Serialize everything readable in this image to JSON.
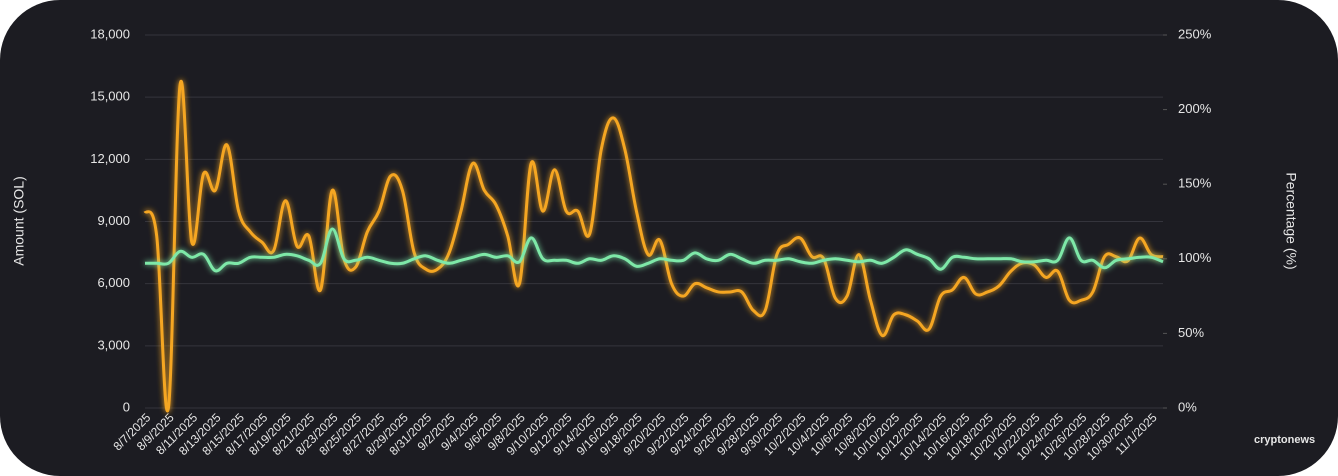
{
  "chart_data": {
    "type": "line",
    "y_label": "Amount (SOL)",
    "y2_label": "Percentage (%)",
    "watermark": "cryptonews",
    "categories": [
      "8/7/2025",
      null,
      "8/9/2025",
      null,
      "8/11/2025",
      null,
      "8/13/2025",
      null,
      "8/15/2025",
      null,
      "8/17/2025",
      null,
      "8/19/2025",
      null,
      "8/21/2025",
      null,
      "8/23/2025",
      null,
      "8/25/2025",
      null,
      "8/27/2025",
      null,
      "8/29/2025",
      null,
      "8/31/2025",
      null,
      "9/2/2025",
      null,
      "9/4/2025",
      null,
      "9/6/2025",
      null,
      "9/8/2025",
      null,
      "9/10/2025",
      null,
      "9/12/2025",
      null,
      "9/14/2025",
      null,
      "9/16/2025",
      null,
      "9/18/2025",
      null,
      "9/20/2025",
      null,
      "9/22/2025",
      null,
      "9/24/2025",
      null,
      "9/26/2025",
      null,
      "9/28/2025",
      null,
      "9/30/2025",
      null,
      "10/2/2025",
      null,
      "10/4/2025",
      null,
      "10/6/2025",
      null,
      "10/8/2025",
      null,
      "10/10/2025",
      null,
      "10/12/2025",
      null,
      "10/14/2025",
      null,
      "10/16/2025",
      null,
      "10/18/2025",
      null,
      "10/20/2025",
      null,
      "10/22/2025",
      null,
      "10/24/2025",
      null,
      "10/26/2025",
      null,
      "10/28/2025",
      null,
      "10/30/2025",
      null,
      "11/1/2025",
      null
    ],
    "series": [
      {
        "color": "#f5a623",
        "values": [
          9500,
          8300,
          0,
          15600,
          8000,
          11300,
          10500,
          12700,
          9500,
          8500,
          8000,
          7600,
          10000,
          7800,
          8300,
          5700,
          10500,
          7200,
          6800,
          8500,
          9500,
          11200,
          10500,
          7500,
          6700,
          6700,
          7500,
          9500,
          11800,
          10500,
          9800,
          8300,
          6000,
          11800,
          9500,
          11500,
          9500,
          9500,
          8400,
          12500,
          14000,
          12500,
          9500,
          7400,
          8100,
          6000,
          5400,
          6000,
          5800,
          5600,
          5600,
          5600,
          4700,
          4700,
          7400,
          7900,
          8200,
          7300,
          7200,
          5300,
          5400,
          7400,
          5200,
          3500,
          4500,
          4500,
          4200,
          3800,
          5400,
          5700,
          6300,
          5500,
          5600,
          5900,
          6600,
          7000,
          6900,
          6300,
          6600,
          5200,
          5200,
          5600,
          7300,
          7300,
          7100,
          8200,
          7400,
          7300
        ]
      },
      {
        "color": "#7ee8a8",
        "axis": "y2",
        "values": [
          97,
          97,
          97,
          105,
          101,
          103,
          92,
          97,
          97,
          101,
          101,
          101,
          103,
          102,
          99,
          97,
          120,
          100,
          99,
          101,
          99,
          97,
          97,
          100,
          102,
          99,
          97,
          99,
          101,
          103,
          101,
          102,
          98,
          114,
          100,
          99,
          99,
          97,
          100,
          99,
          102,
          100,
          95,
          97,
          100,
          99,
          99,
          104,
          100,
          99,
          103,
          100,
          97,
          99,
          99,
          100,
          98,
          97,
          99,
          100,
          99,
          98,
          99,
          97,
          101,
          106,
          103,
          100,
          93,
          101,
          101,
          100,
          100,
          100,
          100,
          98,
          98,
          99,
          99,
          114,
          99,
          99,
          94,
          99,
          100,
          101,
          101,
          98
        ]
      }
    ],
    "ylim": [
      0,
      18000
    ],
    "yticks": [
      0,
      {
        "value": 3000,
        "label": "3,000"
      },
      {
        "value": 6000,
        "label": "6,000"
      },
      {
        "value": 9000,
        "label": "9,000"
      },
      {
        "value": 12000,
        "label": "12,000"
      },
      {
        "value": 15000,
        "label": "15,000"
      },
      {
        "value": 18000,
        "label": "18,000"
      }
    ],
    "y2lim": [
      0,
      250
    ],
    "y2ticks": [
      {
        "value": 0,
        "label": "0%"
      },
      {
        "value": 50,
        "label": "50%"
      },
      {
        "value": 100,
        "label": "100%"
      },
      {
        "value": 150,
        "label": "150%"
      },
      {
        "value": 200,
        "label": "200%"
      },
      {
        "value": 250,
        "label": "250%"
      }
    ],
    "grid": true
  }
}
